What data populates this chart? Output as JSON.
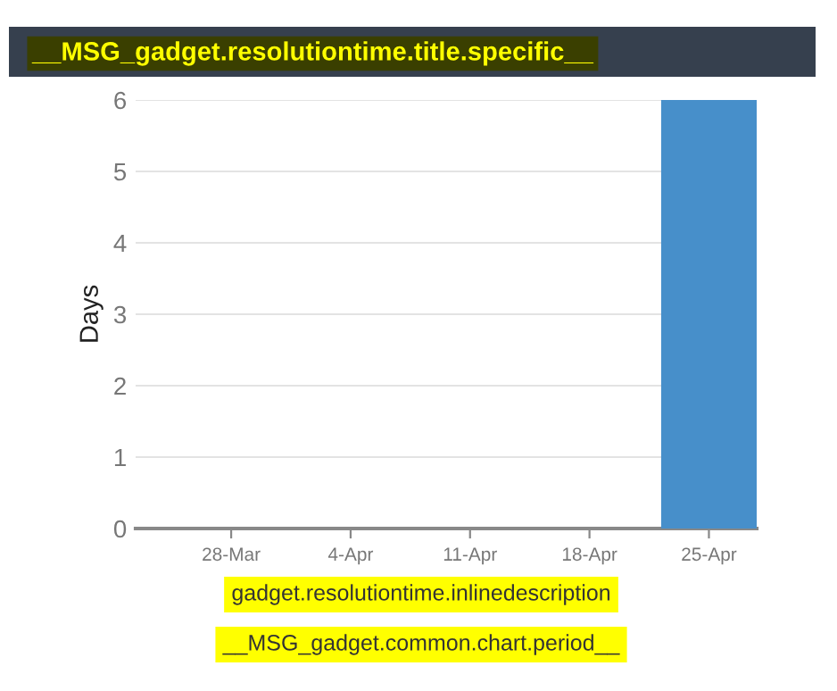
{
  "chart_data": {
    "type": "bar",
    "title": "__MSG_gadget.resolutiontime.title.specific__",
    "ylabel": "Days",
    "categories": [
      "28-Mar",
      "4-Apr",
      "11-Apr",
      "18-Apr",
      "25-Apr"
    ],
    "values": [
      0,
      0,
      0,
      0,
      6
    ],
    "color": "#478fca",
    "ylim": [
      0,
      6
    ],
    "yticks": [
      0,
      1,
      2,
      3,
      4,
      5,
      6
    ],
    "grid": "y",
    "legend": false,
    "annotations": [
      "gadget.resolutiontime.inlinedescription",
      "__MSG_gadget.common.chart.period__"
    ]
  }
}
